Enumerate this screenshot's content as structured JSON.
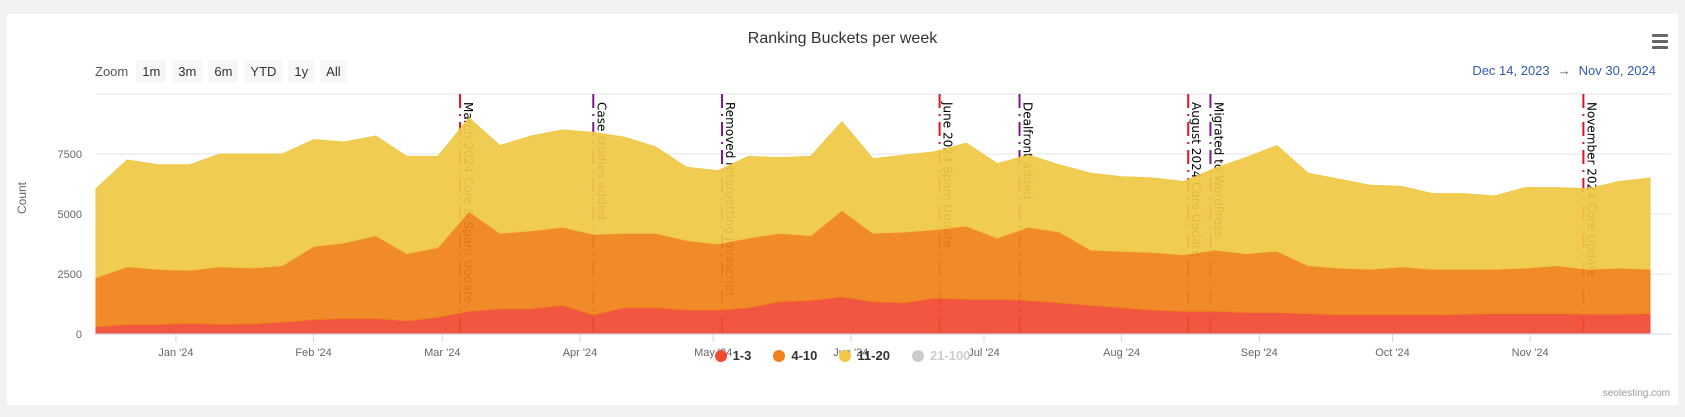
{
  "chart_data": {
    "type": "area",
    "stacked": true,
    "title": "Ranking Buckets per week",
    "ylabel": "Count",
    "xlabel": "",
    "ylim": [
      0,
      10000
    ],
    "yticks": [
      0,
      2500,
      5000,
      7500
    ],
    "xticks": [
      {
        "date": "2024-01-01",
        "label": "Jan '24"
      },
      {
        "date": "2024-02-01",
        "label": "Feb '24"
      },
      {
        "date": "2024-03-01",
        "label": "Mar '24"
      },
      {
        "date": "2024-04-01",
        "label": "Apr '24"
      },
      {
        "date": "2024-05-01",
        "label": "May '24"
      },
      {
        "date": "2024-06-01",
        "label": "Jun '24"
      },
      {
        "date": "2024-07-01",
        "label": "Jul '24"
      },
      {
        "date": "2024-08-01",
        "label": "Aug '24"
      },
      {
        "date": "2024-09-01",
        "label": "Sep '24"
      },
      {
        "date": "2024-10-01",
        "label": "Oct '24"
      },
      {
        "date": "2024-11-01",
        "label": "Nov '24"
      }
    ],
    "x_start": "2023-12-14",
    "x_interval": "weekly",
    "grid": true,
    "legend_position": "bottom",
    "series": [
      {
        "name": "1-3",
        "color": "#f04a32",
        "visible": true,
        "values": [
          300,
          400,
          400,
          450,
          400,
          420,
          500,
          600,
          650,
          650,
          550,
          700,
          950,
          1050,
          1050,
          1200,
          800,
          1100,
          1100,
          1000,
          1000,
          1100,
          1350,
          1400,
          1550,
          1350,
          1300,
          1500,
          1450,
          1450,
          1400,
          1300,
          1200,
          1100,
          1000,
          950,
          950,
          900,
          900,
          850,
          800,
          800,
          800,
          800,
          820,
          850,
          850,
          850,
          830,
          820,
          850
        ]
      },
      {
        "name": "4-10",
        "color": "#f0821a",
        "visible": true,
        "values": [
          2050,
          2400,
          2300,
          2200,
          2400,
          2330,
          2350,
          3050,
          3150,
          3450,
          2800,
          2900,
          4150,
          3150,
          3250,
          3250,
          3350,
          3100,
          3100,
          2900,
          2750,
          2900,
          2850,
          2700,
          3600,
          2850,
          2950,
          2850,
          3050,
          2550,
          3050,
          2950,
          2300,
          2350,
          2400,
          2350,
          2550,
          2450,
          2550,
          2000,
          1950,
          1900,
          2000,
          1900,
          1880,
          1850,
          1900,
          2000,
          1870,
          1930,
          1850
        ]
      },
      {
        "name": "11-20",
        "color": "#f0c846",
        "visible": true,
        "values": [
          3700,
          4450,
          4350,
          4400,
          4700,
          4750,
          4650,
          4450,
          4200,
          4150,
          4050,
          3800,
          3900,
          3650,
          3950,
          4050,
          4250,
          4000,
          3600,
          3050,
          3050,
          3400,
          3150,
          3300,
          3700,
          3100,
          3200,
          3250,
          3450,
          3100,
          3000,
          2800,
          3200,
          3100,
          3100,
          3050,
          3400,
          4000,
          4400,
          3850,
          3700,
          3500,
          3350,
          3150,
          3150,
          3050,
          3350,
          3250,
          3350,
          3600,
          3800
        ]
      },
      {
        "name": "21-100",
        "color": "#cccccc",
        "visible": false,
        "values": []
      }
    ],
    "annotations": [
      {
        "date": "2024-03-05",
        "label": "March 2024 Core & Spam Update",
        "color": "#e0141e"
      },
      {
        "date": "2024-04-04",
        "label": "Case studies added",
        "color": "#7b1a86"
      },
      {
        "date": "2024-05-03",
        "label": "Removed retargetting javascript",
        "color": "#7b1a86"
      },
      {
        "date": "2024-06-21",
        "label": "June 2024 Spam Update",
        "color": "#e0141e"
      },
      {
        "date": "2024-07-09",
        "label": "Dealfront added",
        "color": "#7b1a86"
      },
      {
        "date": "2024-08-16",
        "label": "August 2024 Core Update",
        "color": "#e0141e"
      },
      {
        "date": "2024-08-21",
        "label": "Migrated to WordPress",
        "color": "#7b1a86"
      },
      {
        "date": "2024-11-13",
        "label": "November 2024 Core Update",
        "color": "#e0141e"
      }
    ]
  },
  "toolbar": {
    "zoom_label": "Zoom",
    "zoom_buttons": [
      "1m",
      "3m",
      "6m",
      "YTD",
      "1y",
      "All"
    ],
    "range_from": "Dec 14, 2023",
    "range_arrow": "→",
    "range_to": "Nov 30, 2024",
    "menu_icon": "hamburger-menu-icon"
  },
  "credits": "seotesting.com"
}
